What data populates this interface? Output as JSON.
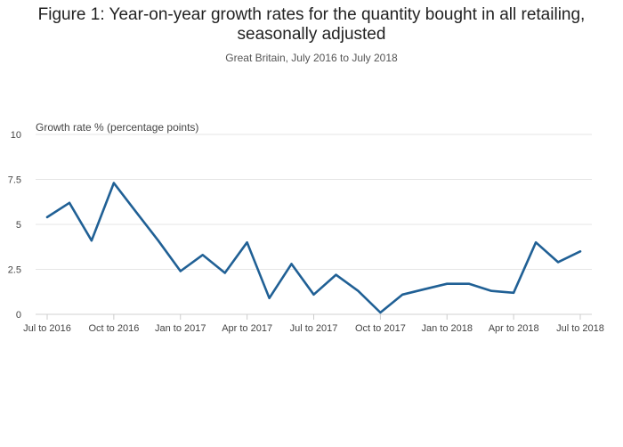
{
  "chart_data": {
    "type": "line",
    "title": "Figure 1: Year-on-year growth rates for the quantity bought in all retailing, seasonally adjusted",
    "title_lines": [
      "Figure 1: Year-on-year growth rates for the quantity bought in all retailing,",
      "seasonally adjusted"
    ],
    "subtitle": "Great Britain, July 2016 to July 2018",
    "ylabel": "Growth rate % (percentage points)",
    "xlabel": "",
    "ylim": [
      0,
      10
    ],
    "yticks": [
      0,
      2.5,
      5,
      7.5,
      10
    ],
    "ytick_labels": [
      "0",
      "2.5",
      "5",
      "7.5",
      "10"
    ],
    "xtick_labels": [
      "Jul to 2016",
      "Oct to 2016",
      "Jan to 2017",
      "Apr to 2017",
      "Jul to 2017",
      "Oct to 2017",
      "Jan to 2018",
      "Apr to 2018",
      "Jul to 2018"
    ],
    "xtick_index": [
      0,
      3,
      6,
      9,
      12,
      15,
      18,
      21,
      24
    ],
    "grid": true,
    "color": "#206095",
    "series": [
      {
        "name": "Quantity bought, all retailing",
        "values": [
          5.4,
          6.2,
          4.1,
          7.3,
          5.7,
          4.1,
          2.4,
          3.3,
          2.3,
          4.0,
          0.9,
          2.8,
          1.1,
          2.2,
          1.3,
          0.1,
          1.1,
          1.4,
          1.7,
          1.7,
          1.3,
          1.2,
          4.0,
          2.9,
          3.5
        ]
      }
    ]
  }
}
